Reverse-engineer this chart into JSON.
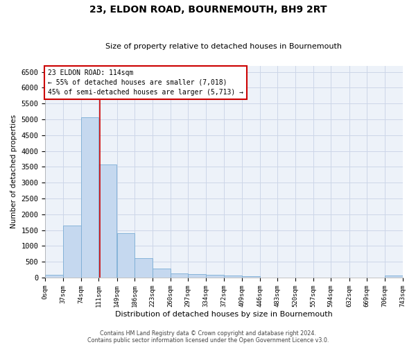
{
  "title": "23, ELDON ROAD, BOURNEMOUTH, BH9 2RT",
  "subtitle": "Size of property relative to detached houses in Bournemouth",
  "xlabel": "Distribution of detached houses by size in Bournemouth",
  "ylabel": "Number of detached properties",
  "footer_line1": "Contains HM Land Registry data © Crown copyright and database right 2024.",
  "footer_line2": "Contains public sector information licensed under the Open Government Licence v3.0.",
  "bar_color": "#c5d8ef",
  "bar_edge_color": "#7aadd4",
  "highlight_line_color": "#cc0000",
  "annotation_box_color": "#cc0000",
  "grid_color": "#ccd6e8",
  "background_color": "#edf2f9",
  "annotation_text_line1": "23 ELDON ROAD: 114sqm",
  "annotation_text_line2": "← 55% of detached houses are smaller (7,018)",
  "annotation_text_line3": "45% of semi-detached houses are larger (5,713) →",
  "property_size_sqm": 114,
  "bin_edges": [
    0,
    37,
    74,
    111,
    149,
    186,
    223,
    260,
    297,
    334,
    372,
    409,
    446,
    483,
    520,
    557,
    594,
    632,
    669,
    706,
    743
  ],
  "bin_labels": [
    "0sqm",
    "37sqm",
    "74sqm",
    "111sqm",
    "149sqm",
    "186sqm",
    "223sqm",
    "260sqm",
    "297sqm",
    "334sqm",
    "372sqm",
    "409sqm",
    "446sqm",
    "483sqm",
    "520sqm",
    "557sqm",
    "594sqm",
    "632sqm",
    "669sqm",
    "706sqm",
    "743sqm"
  ],
  "bar_heights": [
    80,
    1640,
    5070,
    3570,
    1410,
    620,
    290,
    130,
    110,
    80,
    60,
    50,
    0,
    0,
    0,
    0,
    0,
    0,
    0,
    60
  ],
  "ylim": [
    0,
    6700
  ],
  "yticks": [
    0,
    500,
    1000,
    1500,
    2000,
    2500,
    3000,
    3500,
    4000,
    4500,
    5000,
    5500,
    6000,
    6500
  ]
}
